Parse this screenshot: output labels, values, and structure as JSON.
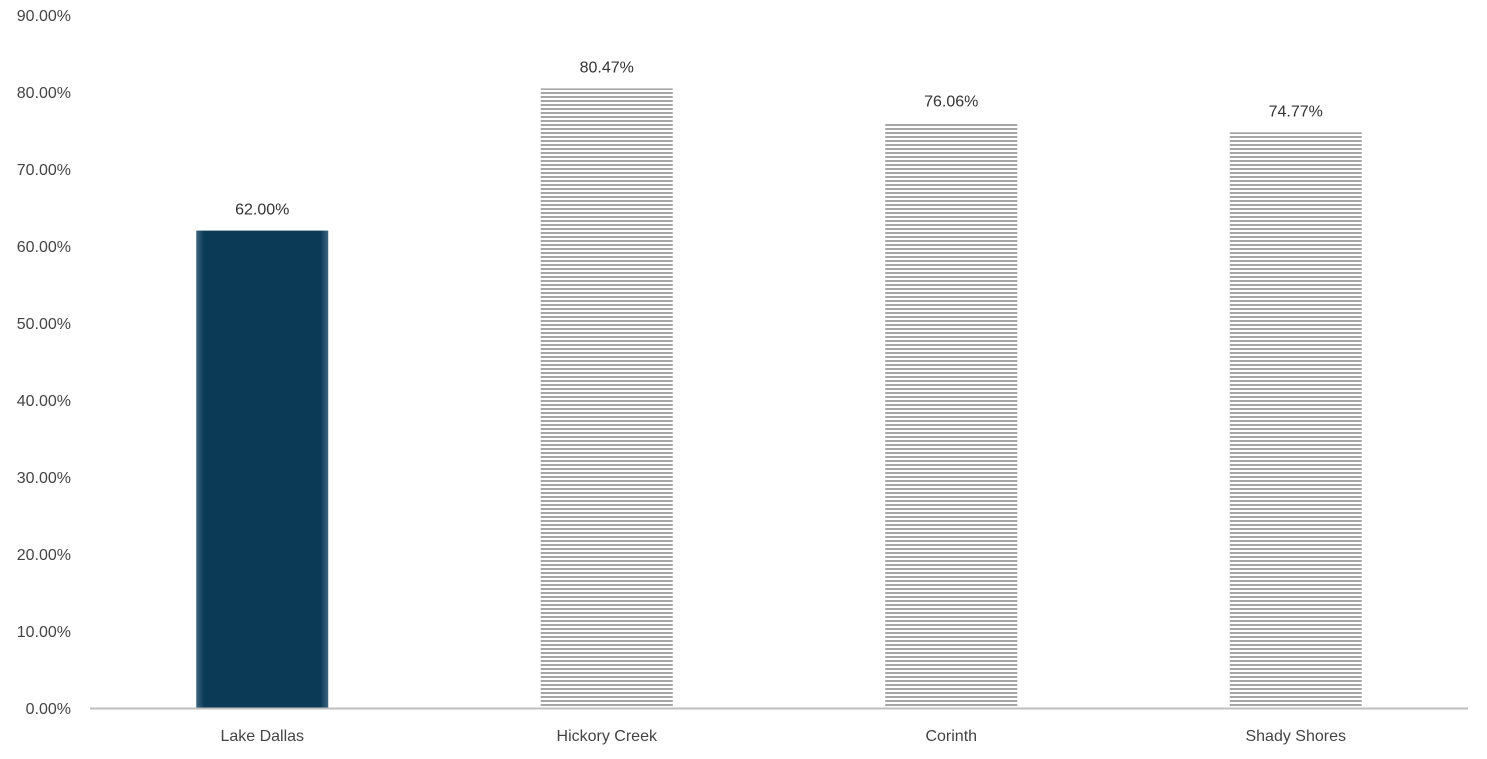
{
  "chart_data": {
    "type": "bar",
    "categories": [
      "Lake Dallas",
      "Hickory Creek",
      "Corinth",
      "Shady Shores"
    ],
    "values": [
      62.0,
      80.47,
      76.06,
      74.77
    ],
    "value_labels": [
      "62.00%",
      "80.47%",
      "76.06%",
      "74.77%"
    ],
    "title": "",
    "xlabel": "",
    "ylabel": "",
    "ylim": [
      0,
      90
    ],
    "yticks": [
      0,
      10,
      20,
      30,
      40,
      50,
      60,
      70,
      80,
      90
    ],
    "ytick_labels": [
      "0.00%",
      "10.00%",
      "20.00%",
      "30.00%",
      "40.00%",
      "50.00%",
      "60.00%",
      "70.00%",
      "80.00%",
      "90.00%"
    ],
    "grid": false,
    "legend": "none",
    "bar_styles": [
      "solid",
      "striped",
      "striped",
      "striped"
    ],
    "colors": {
      "highlight": "#0b3a57",
      "stripe_light": "#ffffff",
      "stripe_dark": "#a6a6a6",
      "axis": "#bfbfbf"
    }
  }
}
